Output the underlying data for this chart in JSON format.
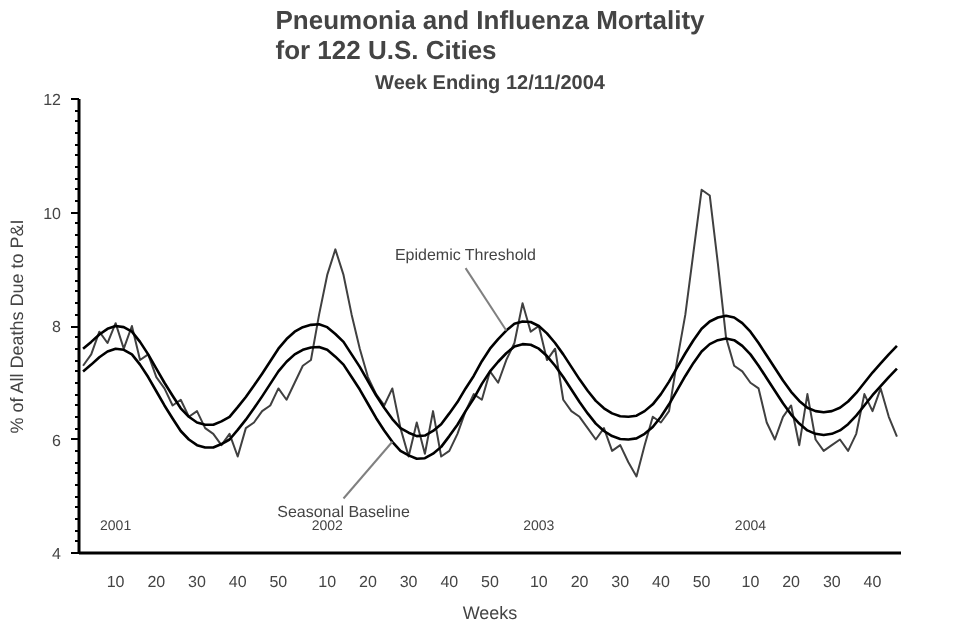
{
  "chart_data": {
    "type": "line",
    "title": "Pneumonia and Influenza Mortality\nfor 122 U.S. Cities",
    "subtitle": "Week Ending 12/11/2004",
    "xlabel": "Weeks",
    "ylabel": "% of All Deaths Due to P&I",
    "ylim": [
      4,
      12
    ],
    "yticks": [
      4,
      6,
      8,
      10,
      12
    ],
    "categories": [
      null,
      null,
      null,
      null,
      "10",
      null,
      null,
      null,
      null,
      "20",
      null,
      null,
      null,
      null,
      "30",
      null,
      null,
      null,
      null,
      "40",
      null,
      null,
      null,
      null,
      "50",
      null,
      null,
      null,
      null,
      null,
      "10",
      null,
      null,
      null,
      null,
      "20",
      null,
      null,
      null,
      null,
      "30",
      null,
      null,
      null,
      null,
      "40",
      null,
      null,
      null,
      null,
      "50",
      null,
      null,
      null,
      null,
      null,
      "10",
      null,
      null,
      null,
      null,
      "20",
      null,
      null,
      null,
      null,
      "30",
      null,
      null,
      null,
      null,
      "40",
      null,
      null,
      null,
      null,
      "50",
      null,
      null,
      null,
      null,
      null,
      "10",
      null,
      null,
      null,
      null,
      "20",
      null,
      null,
      null,
      null,
      "30",
      null,
      null,
      null,
      null,
      "40",
      null,
      null,
      null
    ],
    "annotations": [
      "2001",
      "2002",
      "2003",
      "2004"
    ],
    "grid": false,
    "legend": false,
    "marker": "none",
    "line_style": "solid",
    "series": [
      {
        "color": "#404040",
        "values": [
          7.3,
          7.5,
          7.9,
          7.7,
          8.05,
          7.6,
          8.0,
          7.4,
          7.5,
          7.1,
          6.9,
          6.6,
          6.7,
          6.4,
          6.5,
          6.2,
          6.1,
          5.9,
          6.1,
          5.7,
          6.2,
          6.3,
          6.5,
          6.6,
          6.9,
          6.7,
          7.0,
          7.3,
          7.4,
          8.2,
          8.9,
          9.35,
          8.9,
          8.2,
          7.6,
          7.1,
          6.8,
          6.6,
          6.9,
          6.2,
          5.7,
          6.3,
          5.75,
          6.5,
          5.7,
          5.8,
          6.1,
          6.5,
          6.8,
          6.7,
          7.2,
          7.0,
          7.4,
          7.7,
          8.4,
          7.9,
          8.0,
          7.4,
          7.6,
          6.7,
          6.5,
          6.4,
          6.2,
          6.0,
          6.2,
          5.8,
          5.9,
          5.6,
          5.35,
          5.9,
          6.4,
          6.3,
          6.5,
          7.4,
          8.2,
          9.3,
          10.4,
          10.3,
          9.1,
          7.8,
          7.3,
          7.2,
          7.0,
          6.9,
          6.3,
          6.0,
          6.4,
          6.6,
          5.9,
          6.8,
          6.0,
          5.8,
          5.9,
          6.0,
          5.8,
          6.1,
          6.8,
          6.5,
          6.9,
          6.4,
          6.05
        ]
      },
      {
        "name": "Epidemic Threshold",
        "color": "#000000",
        "values": [
          7.6,
          7.72,
          7.85,
          7.95,
          8.0,
          7.98,
          7.9,
          7.72,
          7.5,
          7.25,
          7.0,
          6.77,
          6.55,
          6.4,
          6.3,
          6.26,
          6.26,
          6.32,
          6.4,
          6.57,
          6.75,
          6.95,
          7.16,
          7.38,
          7.6,
          7.77,
          7.9,
          7.98,
          8.02,
          8.03,
          7.98,
          7.86,
          7.72,
          7.5,
          7.28,
          7.03,
          6.78,
          6.56,
          6.36,
          6.2,
          6.12,
          6.06,
          6.07,
          6.15,
          6.27,
          6.46,
          6.66,
          6.9,
          7.12,
          7.38,
          7.6,
          7.77,
          7.92,
          8.04,
          8.08,
          8.07,
          8.0,
          7.87,
          7.7,
          7.5,
          7.28,
          7.06,
          6.86,
          6.68,
          6.55,
          6.46,
          6.41,
          6.4,
          6.42,
          6.5,
          6.62,
          6.8,
          7.02,
          7.27,
          7.52,
          7.75,
          7.95,
          8.08,
          8.15,
          8.18,
          8.15,
          8.05,
          7.9,
          7.7,
          7.48,
          7.26,
          7.04,
          6.84,
          6.68,
          6.56,
          6.5,
          6.48,
          6.5,
          6.56,
          6.67,
          6.82,
          7.0,
          7.18,
          7.34,
          7.5,
          7.65
        ]
      },
      {
        "name": "Seasonal Baseline",
        "color": "#000000",
        "values": [
          7.2,
          7.32,
          7.45,
          7.55,
          7.6,
          7.58,
          7.5,
          7.32,
          7.1,
          6.85,
          6.6,
          6.37,
          6.15,
          6.0,
          5.9,
          5.86,
          5.86,
          5.92,
          6.0,
          6.17,
          6.35,
          6.55,
          6.76,
          6.98,
          7.2,
          7.37,
          7.5,
          7.58,
          7.62,
          7.63,
          7.58,
          7.46,
          7.32,
          7.1,
          6.88,
          6.63,
          6.38,
          6.16,
          5.96,
          5.8,
          5.72,
          5.66,
          5.67,
          5.75,
          5.87,
          6.06,
          6.26,
          6.5,
          6.72,
          6.98,
          7.2,
          7.37,
          7.52,
          7.64,
          7.68,
          7.67,
          7.6,
          7.47,
          7.3,
          7.1,
          6.88,
          6.66,
          6.46,
          6.28,
          6.15,
          6.06,
          6.01,
          6.0,
          6.02,
          6.1,
          6.22,
          6.4,
          6.62,
          6.87,
          7.12,
          7.35,
          7.55,
          7.68,
          7.75,
          7.78,
          7.75,
          7.65,
          7.5,
          7.3,
          7.08,
          6.86,
          6.64,
          6.44,
          6.28,
          6.16,
          6.1,
          6.08,
          6.1,
          6.16,
          6.27,
          6.42,
          6.6,
          6.78,
          6.94,
          7.1,
          7.25
        ]
      }
    ]
  }
}
